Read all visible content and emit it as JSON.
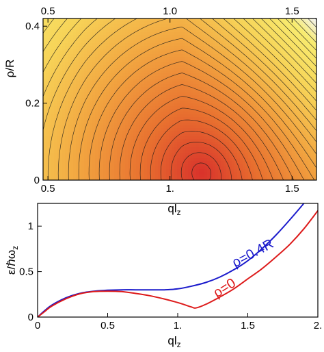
{
  "chart_data": [
    {
      "type": "heatmap",
      "xlabel": "ql",
      "xlabel_sub": "z",
      "ylabel": "ρ/R",
      "xlim": [
        0.48,
        1.6
      ],
      "ylim": [
        0,
        0.42
      ],
      "x_ticks_top": [
        "0.5",
        "1.0",
        "1.5"
      ],
      "x_tick_values_top": [
        0.5,
        1.0,
        1.5
      ],
      "x_ticks_bottom": [
        "0.5",
        "1.",
        "1.5"
      ],
      "x_tick_values_bottom": [
        0.5,
        1.0,
        1.5
      ],
      "y_ticks": [
        "0",
        "0.2",
        "0.4"
      ],
      "y_tick_values": [
        0,
        0.2,
        0.4
      ],
      "colormap": [
        "#d8312b",
        "#e8702f",
        "#f2a540",
        "#f7d458",
        "#f8ec70",
        "#f2f4ff",
        "#4a74e0"
      ],
      "contour_color": "#1a1a1a",
      "minimum": {
        "x": 1.13,
        "y": 0.02
      },
      "grid": false
    },
    {
      "type": "line",
      "xlabel": "ql",
      "xlabel_sub": "z",
      "ylabel": "ε/ℏω",
      "ylabel_sub": "z",
      "xlim": [
        0,
        2.0
      ],
      "ylim": [
        0,
        1.25
      ],
      "x_ticks": [
        "0",
        "0.5",
        "1.",
        "1.5",
        "2."
      ],
      "x_tick_values": [
        0,
        0.5,
        1.0,
        1.5,
        2.0
      ],
      "y_ticks": [
        "0",
        "0.5",
        "1"
      ],
      "y_tick_values": [
        0,
        0.5,
        1.0
      ],
      "grid": false,
      "series": [
        {
          "name": "ρ=0.4R",
          "color": "#1a1acc",
          "label_at": {
            "x": 1.55,
            "y": 0.66
          },
          "x": [
            0,
            0.05,
            0.1,
            0.2,
            0.3,
            0.4,
            0.5,
            0.6,
            0.7,
            0.8,
            0.9,
            1.0,
            1.1,
            1.2,
            1.3,
            1.4,
            1.5,
            1.6,
            1.7,
            1.8,
            1.9
          ],
          "y": [
            0,
            0.07,
            0.13,
            0.21,
            0.26,
            0.285,
            0.295,
            0.3,
            0.3,
            0.3,
            0.3,
            0.31,
            0.34,
            0.38,
            0.44,
            0.52,
            0.62,
            0.75,
            0.9,
            1.07,
            1.25
          ]
        },
        {
          "name": "ρ=0",
          "color": "#dd1a1a",
          "label_at": {
            "x": 1.35,
            "y": 0.28
          },
          "x": [
            0,
            0.05,
            0.1,
            0.2,
            0.3,
            0.4,
            0.5,
            0.6,
            0.7,
            0.8,
            0.9,
            1.0,
            1.05,
            1.1,
            1.13,
            1.2,
            1.3,
            1.4,
            1.5,
            1.6,
            1.7,
            1.8,
            1.9,
            2.0
          ],
          "y": [
            0,
            0.06,
            0.12,
            0.2,
            0.255,
            0.28,
            0.285,
            0.28,
            0.26,
            0.235,
            0.2,
            0.16,
            0.135,
            0.11,
            0.1,
            0.14,
            0.22,
            0.31,
            0.42,
            0.53,
            0.66,
            0.8,
            0.97,
            1.17
          ]
        }
      ]
    }
  ]
}
